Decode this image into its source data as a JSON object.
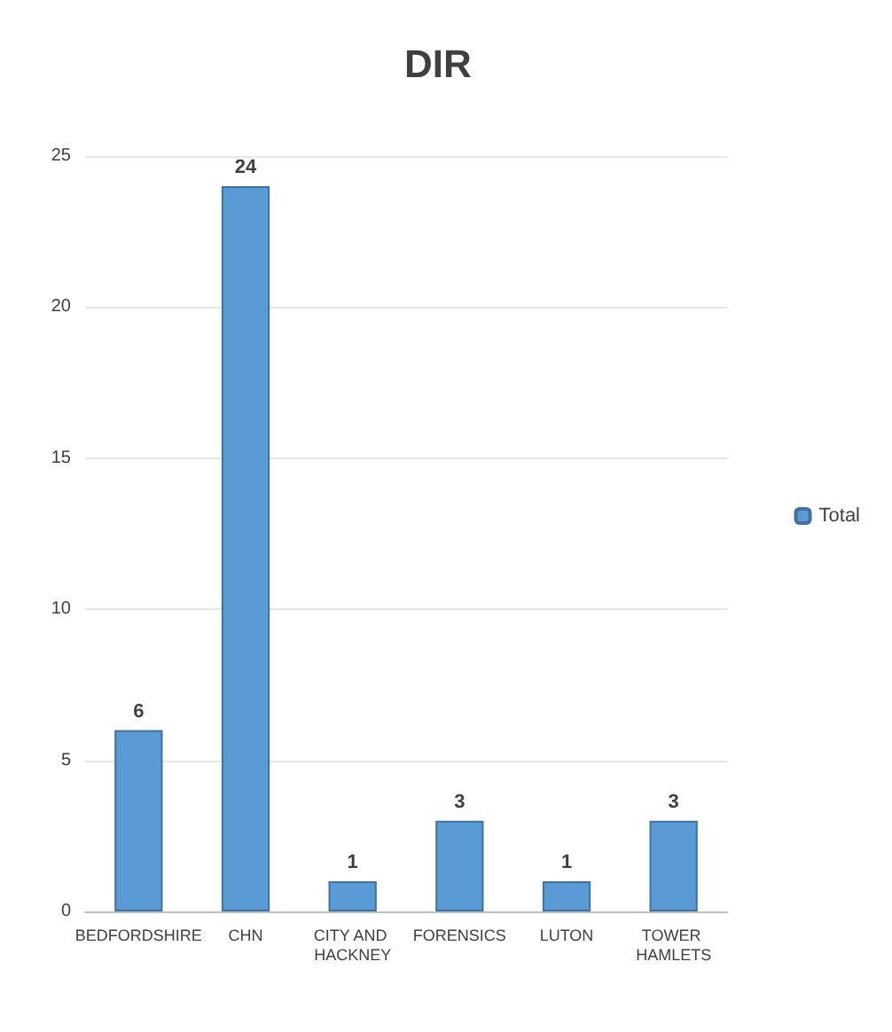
{
  "chart_data": {
    "type": "bar",
    "title": "DIR",
    "categories": [
      "BEDFORDSHIRE",
      "CHN",
      "CITY AND HACKNEY",
      "FORENSICS",
      "LUTON",
      "TOWER HAMLETS"
    ],
    "series": [
      {
        "name": "Total",
        "color": "#5b9bd5",
        "values": [
          6,
          24,
          1,
          3,
          1,
          3
        ]
      }
    ],
    "ylim": [
      0,
      25
    ],
    "yticks": [
      0,
      5,
      10,
      15,
      20,
      25
    ],
    "grid": "y",
    "legend": "right",
    "data_labels": true
  }
}
